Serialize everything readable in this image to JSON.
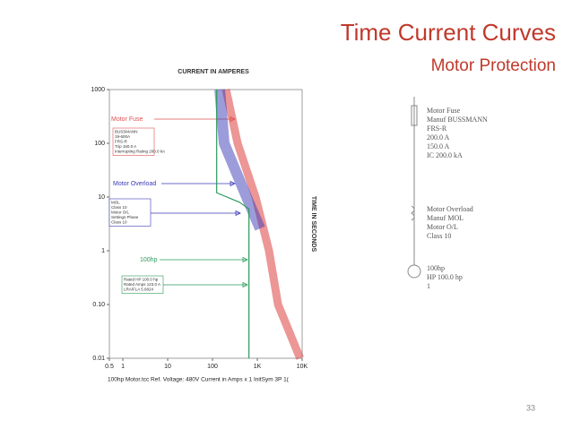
{
  "slide": {
    "title": "Time Current Curves",
    "subtitle": "Motor Protection",
    "page_number": "33"
  },
  "one_line": {
    "fuse": [
      "Motor Fuse",
      "Manuf BUSSMANN",
      "FRS-R",
      "200.0 A",
      "150.0 A",
      "IC 200.0 kA"
    ],
    "overload": [
      "Motor Overload",
      "Manuf MOL",
      "Motor O/L",
      "Class 10"
    ],
    "motor": [
      "100hp",
      "HP 100.0 hp",
      "1"
    ]
  },
  "chart_data": {
    "type": "line",
    "xlabel": "CURRENT IN AMPERES",
    "ylabel": "TIME IN SECONDS",
    "footer": "100hp Motor.tcc   Ref. Voltage: 480V   Current in Amps x 1   InitSym 3P   1(",
    "xscale": "log",
    "yscale": "log",
    "grid": false,
    "xlim": [
      0.5,
      10000
    ],
    "ylim": [
      0.01,
      1000
    ],
    "xticks": [
      0.5,
      1,
      10,
      100,
      {
        "value": 1000,
        "label": "1K"
      },
      {
        "value": 10000,
        "label": "10K"
      }
    ],
    "yticks": [
      0.01,
      {
        "value": 0.1,
        "label": "0.10"
      },
      1,
      10,
      100,
      1000
    ],
    "series": [
      {
        "name": "Motor Fuse",
        "color": "#e05050",
        "x": [
          200,
          363,
          912,
          1820,
          2900,
          9000
        ],
        "values": [
          1000,
          100,
          10,
          1,
          0.1,
          0.01
        ],
        "label_box": [
          "BUSSMANN",
          "19-600A",
          "FRS-R",
          "Trip 150.0 A",
          "Interrupting Rating 200.0 kA"
        ]
      },
      {
        "name": "Motor Overload",
        "color": "#3a3ab8",
        "x": [
          145,
          182,
          575,
          1150
        ],
        "values": [
          1000,
          100,
          10,
          2.6
        ],
        "label_box": [
          "MOL",
          "Class 10",
          "Motor O/L",
          "Settings Phase",
          "Class 10"
        ]
      },
      {
        "name": "100hp",
        "color": "#2a9a5a",
        "x": [
          124,
          124,
          400,
          650,
          650
        ],
        "values": [
          1000,
          12,
          8,
          6,
          0.01
        ],
        "label_box": [
          "Rated HP 100.0 hp",
          "Rated Amps 123.0 A",
          "LRA/FLA 5.6824"
        ]
      }
    ]
  }
}
